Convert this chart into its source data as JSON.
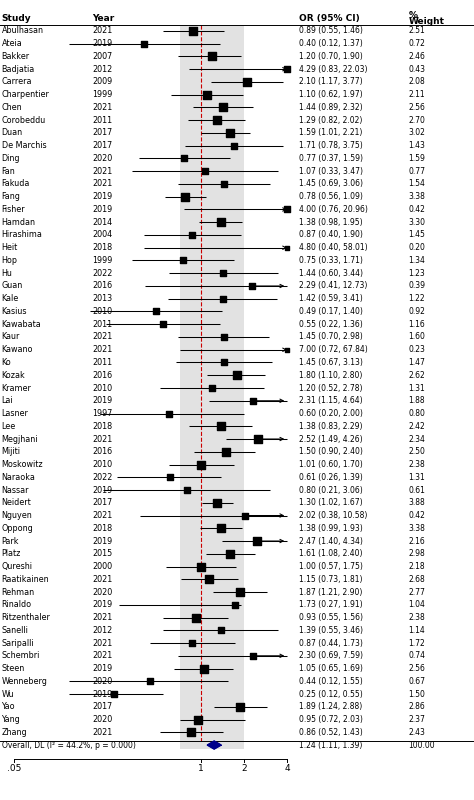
{
  "studies": [
    {
      "study": "Abulhasan",
      "year": 2021,
      "or": 0.89,
      "ci_low": 0.55,
      "ci_high": 1.46,
      "weight": 2.51
    },
    {
      "study": "Ateia",
      "year": 2019,
      "or": 0.4,
      "ci_low": 0.12,
      "ci_high": 1.37,
      "weight": 0.72
    },
    {
      "study": "Bakker",
      "year": 2007,
      "or": 1.2,
      "ci_low": 0.7,
      "ci_high": 1.9,
      "weight": 2.46
    },
    {
      "study": "Badjatia",
      "year": 2012,
      "or": 4.29,
      "ci_low": 0.83,
      "ci_high": 22.03,
      "weight": 0.43
    },
    {
      "study": "Carrera",
      "year": 2009,
      "or": 2.1,
      "ci_low": 1.17,
      "ci_high": 3.77,
      "weight": 2.08
    },
    {
      "study": "Charpentier",
      "year": 1999,
      "or": 1.1,
      "ci_low": 0.62,
      "ci_high": 1.97,
      "weight": 2.11
    },
    {
      "study": "Chen",
      "year": 2021,
      "or": 1.44,
      "ci_low": 0.89,
      "ci_high": 2.32,
      "weight": 2.56
    },
    {
      "study": "Corobeddu",
      "year": 2011,
      "or": 1.29,
      "ci_low": 0.82,
      "ci_high": 2.02,
      "weight": 2.7
    },
    {
      "study": "Duan",
      "year": 2017,
      "or": 1.59,
      "ci_low": 1.01,
      "ci_high": 2.21,
      "weight": 3.02
    },
    {
      "study": "De Marchis",
      "year": 2017,
      "or": 1.71,
      "ci_low": 0.78,
      "ci_high": 3.75,
      "weight": 1.43
    },
    {
      "study": "Ding",
      "year": 2020,
      "or": 0.77,
      "ci_low": 0.37,
      "ci_high": 1.59,
      "weight": 1.59
    },
    {
      "study": "Fan",
      "year": 2021,
      "or": 1.07,
      "ci_low": 0.33,
      "ci_high": 3.47,
      "weight": 0.77
    },
    {
      "study": "Fakuda",
      "year": 2021,
      "or": 1.45,
      "ci_low": 0.69,
      "ci_high": 3.06,
      "weight": 1.54
    },
    {
      "study": "Fang",
      "year": 2019,
      "or": 0.78,
      "ci_low": 0.56,
      "ci_high": 1.09,
      "weight": 3.38
    },
    {
      "study": "Fisher",
      "year": 2019,
      "or": 4.0,
      "ci_low": 0.76,
      "ci_high": 20.96,
      "weight": 0.42
    },
    {
      "study": "Hamdan",
      "year": 2014,
      "or": 1.38,
      "ci_low": 0.98,
      "ci_high": 1.95,
      "weight": 3.3
    },
    {
      "study": "Hirashima",
      "year": 2004,
      "or": 0.87,
      "ci_low": 0.4,
      "ci_high": 1.9,
      "weight": 1.45
    },
    {
      "study": "Heit",
      "year": 2018,
      "or": 4.8,
      "ci_low": 0.4,
      "ci_high": 58.01,
      "weight": 0.2
    },
    {
      "study": "Hop",
      "year": 1999,
      "or": 0.75,
      "ci_low": 0.33,
      "ci_high": 1.71,
      "weight": 1.34
    },
    {
      "study": "Hu",
      "year": 2022,
      "or": 1.44,
      "ci_low": 0.6,
      "ci_high": 3.44,
      "weight": 1.23
    },
    {
      "study": "Guan",
      "year": 2016,
      "or": 2.29,
      "ci_low": 0.41,
      "ci_high": 12.73,
      "weight": 0.39
    },
    {
      "study": "Kale",
      "year": 2013,
      "or": 1.42,
      "ci_low": 0.59,
      "ci_high": 3.41,
      "weight": 1.22
    },
    {
      "study": "Kasius",
      "year": 2010,
      "or": 0.49,
      "ci_low": 0.17,
      "ci_high": 1.4,
      "weight": 0.92
    },
    {
      "study": "Kawabata",
      "year": 2011,
      "or": 0.55,
      "ci_low": 0.22,
      "ci_high": 1.36,
      "weight": 1.16
    },
    {
      "study": "Kaur",
      "year": 2021,
      "or": 1.45,
      "ci_low": 0.7,
      "ci_high": 2.98,
      "weight": 1.6
    },
    {
      "study": "Kawano",
      "year": 2021,
      "or": 7.0,
      "ci_low": 0.72,
      "ci_high": 67.84,
      "weight": 0.23
    },
    {
      "study": "Ko",
      "year": 2011,
      "or": 1.45,
      "ci_low": 0.67,
      "ci_high": 3.13,
      "weight": 1.47
    },
    {
      "study": "Kozak",
      "year": 2016,
      "or": 1.8,
      "ci_low": 1.1,
      "ci_high": 2.8,
      "weight": 2.62
    },
    {
      "study": "Kramer",
      "year": 2010,
      "or": 1.2,
      "ci_low": 0.52,
      "ci_high": 2.78,
      "weight": 1.31
    },
    {
      "study": "Lai",
      "year": 2019,
      "or": 2.31,
      "ci_low": 1.15,
      "ci_high": 4.64,
      "weight": 1.88
    },
    {
      "study": "Lasner",
      "year": 1997,
      "or": 0.6,
      "ci_low": 0.2,
      "ci_high": 2.0,
      "weight": 0.8
    },
    {
      "study": "Lee",
      "year": 2018,
      "or": 1.38,
      "ci_low": 0.83,
      "ci_high": 2.29,
      "weight": 2.42
    },
    {
      "study": "Megjhani",
      "year": 2021,
      "or": 2.52,
      "ci_low": 1.49,
      "ci_high": 4.26,
      "weight": 2.34
    },
    {
      "study": "Mijiti",
      "year": 2016,
      "or": 1.5,
      "ci_low": 0.9,
      "ci_high": 2.4,
      "weight": 2.5
    },
    {
      "study": "Moskowitz",
      "year": 2010,
      "or": 1.01,
      "ci_low": 0.6,
      "ci_high": 1.7,
      "weight": 2.38
    },
    {
      "study": "Naraoka",
      "year": 2022,
      "or": 0.61,
      "ci_low": 0.26,
      "ci_high": 1.39,
      "weight": 1.31
    },
    {
      "study": "Nassar",
      "year": 2019,
      "or": 0.8,
      "ci_low": 0.21,
      "ci_high": 3.06,
      "weight": 0.61
    },
    {
      "study": "Neidert",
      "year": 2017,
      "or": 1.3,
      "ci_low": 1.02,
      "ci_high": 1.67,
      "weight": 3.88
    },
    {
      "study": "Nguyen",
      "year": 2021,
      "or": 2.02,
      "ci_low": 0.38,
      "ci_high": 10.58,
      "weight": 0.42
    },
    {
      "study": "Oppong",
      "year": 2018,
      "or": 1.38,
      "ci_low": 0.99,
      "ci_high": 1.93,
      "weight": 3.38
    },
    {
      "study": "Park",
      "year": 2019,
      "or": 2.47,
      "ci_low": 1.4,
      "ci_high": 4.34,
      "weight": 2.16
    },
    {
      "study": "Platz",
      "year": 2015,
      "or": 1.61,
      "ci_low": 1.08,
      "ci_high": 2.4,
      "weight": 2.98
    },
    {
      "study": "Qureshi",
      "year": 2000,
      "or": 1.0,
      "ci_low": 0.57,
      "ci_high": 1.75,
      "weight": 2.18
    },
    {
      "study": "Raatikainen",
      "year": 2021,
      "or": 1.15,
      "ci_low": 0.73,
      "ci_high": 1.81,
      "weight": 2.68
    },
    {
      "study": "Rehman",
      "year": 2020,
      "or": 1.87,
      "ci_low": 1.21,
      "ci_high": 2.9,
      "weight": 2.77
    },
    {
      "study": "Rinaldo",
      "year": 2019,
      "or": 1.73,
      "ci_low": 0.27,
      "ci_high": 1.91,
      "weight": 1.04
    },
    {
      "study": "Ritzenthaler",
      "year": 2021,
      "or": 0.93,
      "ci_low": 0.55,
      "ci_high": 1.56,
      "weight": 2.38
    },
    {
      "study": "Sanelli",
      "year": 2012,
      "or": 1.39,
      "ci_low": 0.55,
      "ci_high": 3.46,
      "weight": 1.14
    },
    {
      "study": "Saripalli",
      "year": 2021,
      "or": 0.87,
      "ci_low": 0.44,
      "ci_high": 1.73,
      "weight": 1.72
    },
    {
      "study": "Schembri",
      "year": 2021,
      "or": 2.3,
      "ci_low": 0.69,
      "ci_high": 7.59,
      "weight": 0.74
    },
    {
      "study": "Steen",
      "year": 2019,
      "or": 1.05,
      "ci_low": 0.65,
      "ci_high": 1.69,
      "weight": 2.56
    },
    {
      "study": "Wenneberg",
      "year": 2020,
      "or": 0.44,
      "ci_low": 0.12,
      "ci_high": 1.55,
      "weight": 0.67
    },
    {
      "study": "Wu",
      "year": 2019,
      "or": 0.25,
      "ci_low": 0.12,
      "ci_high": 0.55,
      "weight": 1.5
    },
    {
      "study": "Yao",
      "year": 2017,
      "or": 1.89,
      "ci_low": 1.24,
      "ci_high": 2.88,
      "weight": 2.86
    },
    {
      "study": "Yang",
      "year": 2020,
      "or": 0.95,
      "ci_low": 0.72,
      "ci_high": 2.03,
      "weight": 2.37
    },
    {
      "study": "Zhang",
      "year": 2021,
      "or": 0.86,
      "ci_low": 0.52,
      "ci_high": 1.43,
      "weight": 2.43
    }
  ],
  "overall": {
    "or": 1.24,
    "ci_low": 1.11,
    "ci_high": 1.39,
    "label": "Overall, DL (I² = 44.2%, p = 0.000)",
    "weight": 100.0
  },
  "ci_display_max": 4.0,
  "ci_display_min": 0.05,
  "ref_line": 1.0,
  "dashed_line_color": "#cc0000",
  "overall_color": "#00008B",
  "header_study": "Study",
  "header_year": "Year",
  "header_or": "OR (95% CI)",
  "header_weight": "%\nWeight"
}
